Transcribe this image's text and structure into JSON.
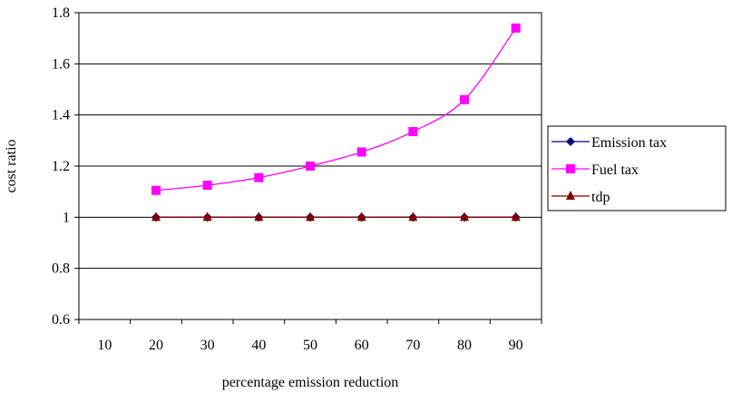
{
  "chart_data": {
    "type": "line",
    "title": "",
    "xlabel": "percentage emission reduction",
    "ylabel": "cost ratio",
    "categories": [
      "10",
      "20",
      "30",
      "40",
      "50",
      "60",
      "70",
      "80",
      "90"
    ],
    "yticks": [
      "0.6",
      "0.8",
      "1",
      "1.2",
      "1.4",
      "1.6",
      "1.8"
    ],
    "ylim": [
      0.6,
      1.8
    ],
    "grid": true,
    "legend_position": "right",
    "series": [
      {
        "name": "Emission tax",
        "color": "#000080",
        "marker": "diamond",
        "values": [
          null,
          1.0,
          1.0,
          1.0,
          1.0,
          1.0,
          1.0,
          1.0,
          1.0
        ]
      },
      {
        "name": "Fuel tax",
        "color": "#FF00FF",
        "marker": "square",
        "values": [
          null,
          1.105,
          1.125,
          1.155,
          1.2,
          1.255,
          1.335,
          1.46,
          1.74
        ]
      },
      {
        "name": "tdp",
        "color": "#800000",
        "marker": "triangle",
        "values": [
          null,
          1.0,
          1.0,
          1.0,
          1.0,
          1.0,
          1.0,
          1.0,
          1.0
        ]
      }
    ]
  }
}
